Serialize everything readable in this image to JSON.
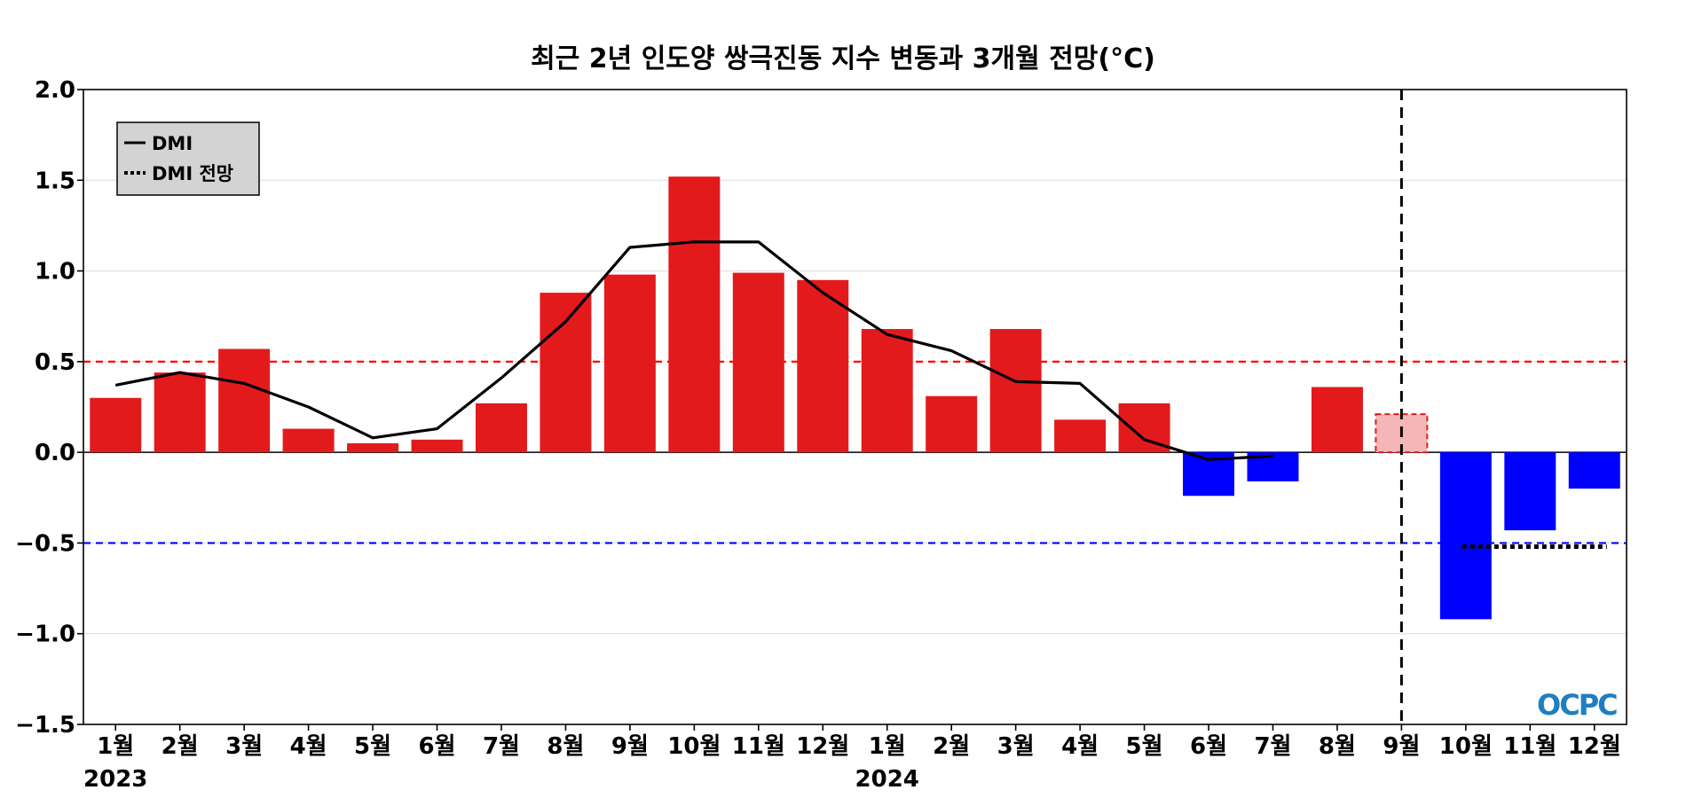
{
  "chart_data": {
    "type": "bar",
    "title": "최근 2년 인도양 쌍극진동 지수 변동과 3개월 전망(°C)",
    "xlabel": "",
    "ylabel": "",
    "ylim": [
      -1.5,
      2.0
    ],
    "yticks": [
      "2.0",
      "1.5",
      "1.0",
      "0.5",
      "0.0",
      "−0.5",
      "−1.0",
      "−1.5"
    ],
    "ytick_values": [
      2.0,
      1.5,
      1.0,
      0.5,
      0.0,
      -0.5,
      -1.0,
      -1.5
    ],
    "categories": [
      "1월",
      "2월",
      "3월",
      "4월",
      "5월",
      "6월",
      "7월",
      "8월",
      "9월",
      "10월",
      "11월",
      "12월",
      "1월",
      "2월",
      "3월",
      "4월",
      "5월",
      "6월",
      "7월",
      "8월",
      "9월",
      "10월",
      "11월",
      "12월"
    ],
    "year_labels": [
      {
        "index": 0,
        "label": "2023"
      },
      {
        "index": 12,
        "label": "2024"
      }
    ],
    "bars": {
      "values": [
        0.3,
        0.44,
        0.57,
        0.13,
        0.05,
        0.07,
        0.27,
        0.88,
        0.98,
        1.52,
        0.99,
        0.95,
        0.68,
        0.31,
        0.68,
        0.18,
        0.27,
        -0.24,
        -0.16,
        0.36,
        0.21,
        -0.92,
        -0.43,
        -0.2
      ],
      "estimate_index": 20,
      "positive_color": "#e31a1c",
      "negative_color": "#0000ff",
      "estimate_color": "#f4b6b6",
      "estimate_border": "#e31a1c"
    },
    "series": [
      {
        "name": "DMI",
        "style": "solid",
        "color": "#000000",
        "values": [
          0.37,
          0.44,
          0.38,
          0.25,
          0.08,
          0.13,
          0.41,
          0.72,
          1.13,
          1.16,
          1.16,
          0.88,
          0.65,
          0.56,
          0.39,
          0.38,
          0.07,
          -0.04,
          -0.02,
          null,
          null,
          null,
          null,
          null
        ]
      },
      {
        "name": "DMI 전망",
        "style": "dotted",
        "color": "#000000",
        "values": [
          null,
          null,
          null,
          null,
          null,
          null,
          null,
          null,
          null,
          null,
          null,
          null,
          null,
          null,
          null,
          null,
          null,
          null,
          null,
          null,
          null,
          -0.52,
          -0.52,
          -0.52
        ]
      }
    ],
    "reference_lines": [
      {
        "y": 0.5,
        "color": "#ff0000",
        "style": "dashed"
      },
      {
        "y": -0.5,
        "color": "#0000ff",
        "style": "dashed"
      }
    ],
    "forecast_divider_index": 20,
    "grid": true,
    "legend_position": "top-left",
    "logo": "OCPC"
  }
}
